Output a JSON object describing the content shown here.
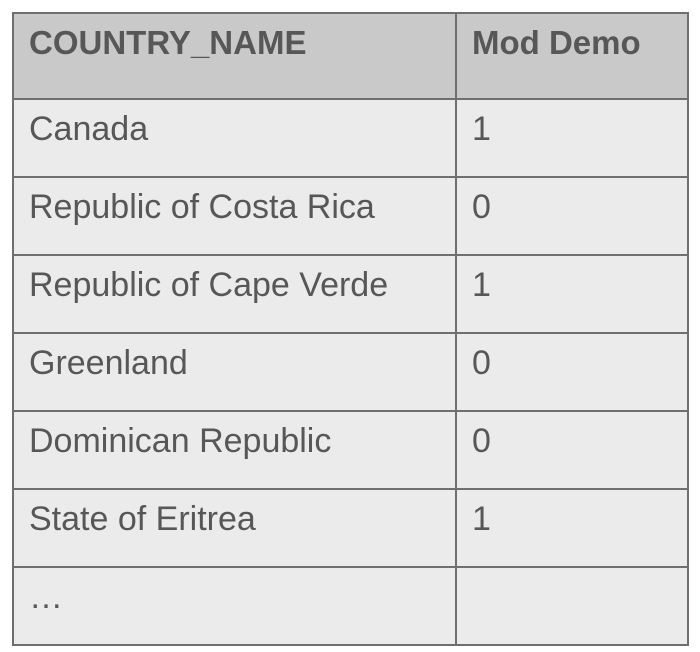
{
  "table": {
    "headers": [
      "COUNTRY_NAME",
      "Mod Demo"
    ],
    "rows": [
      [
        "Canada",
        "1"
      ],
      [
        "Republic of Costa Rica",
        "0"
      ],
      [
        "Republic of Cape Verde",
        "1"
      ],
      [
        "Greenland",
        "0"
      ],
      [
        "Dominican Republic",
        "0"
      ],
      [
        "State of Eritrea",
        "1"
      ],
      [
        "…",
        ""
      ]
    ]
  }
}
